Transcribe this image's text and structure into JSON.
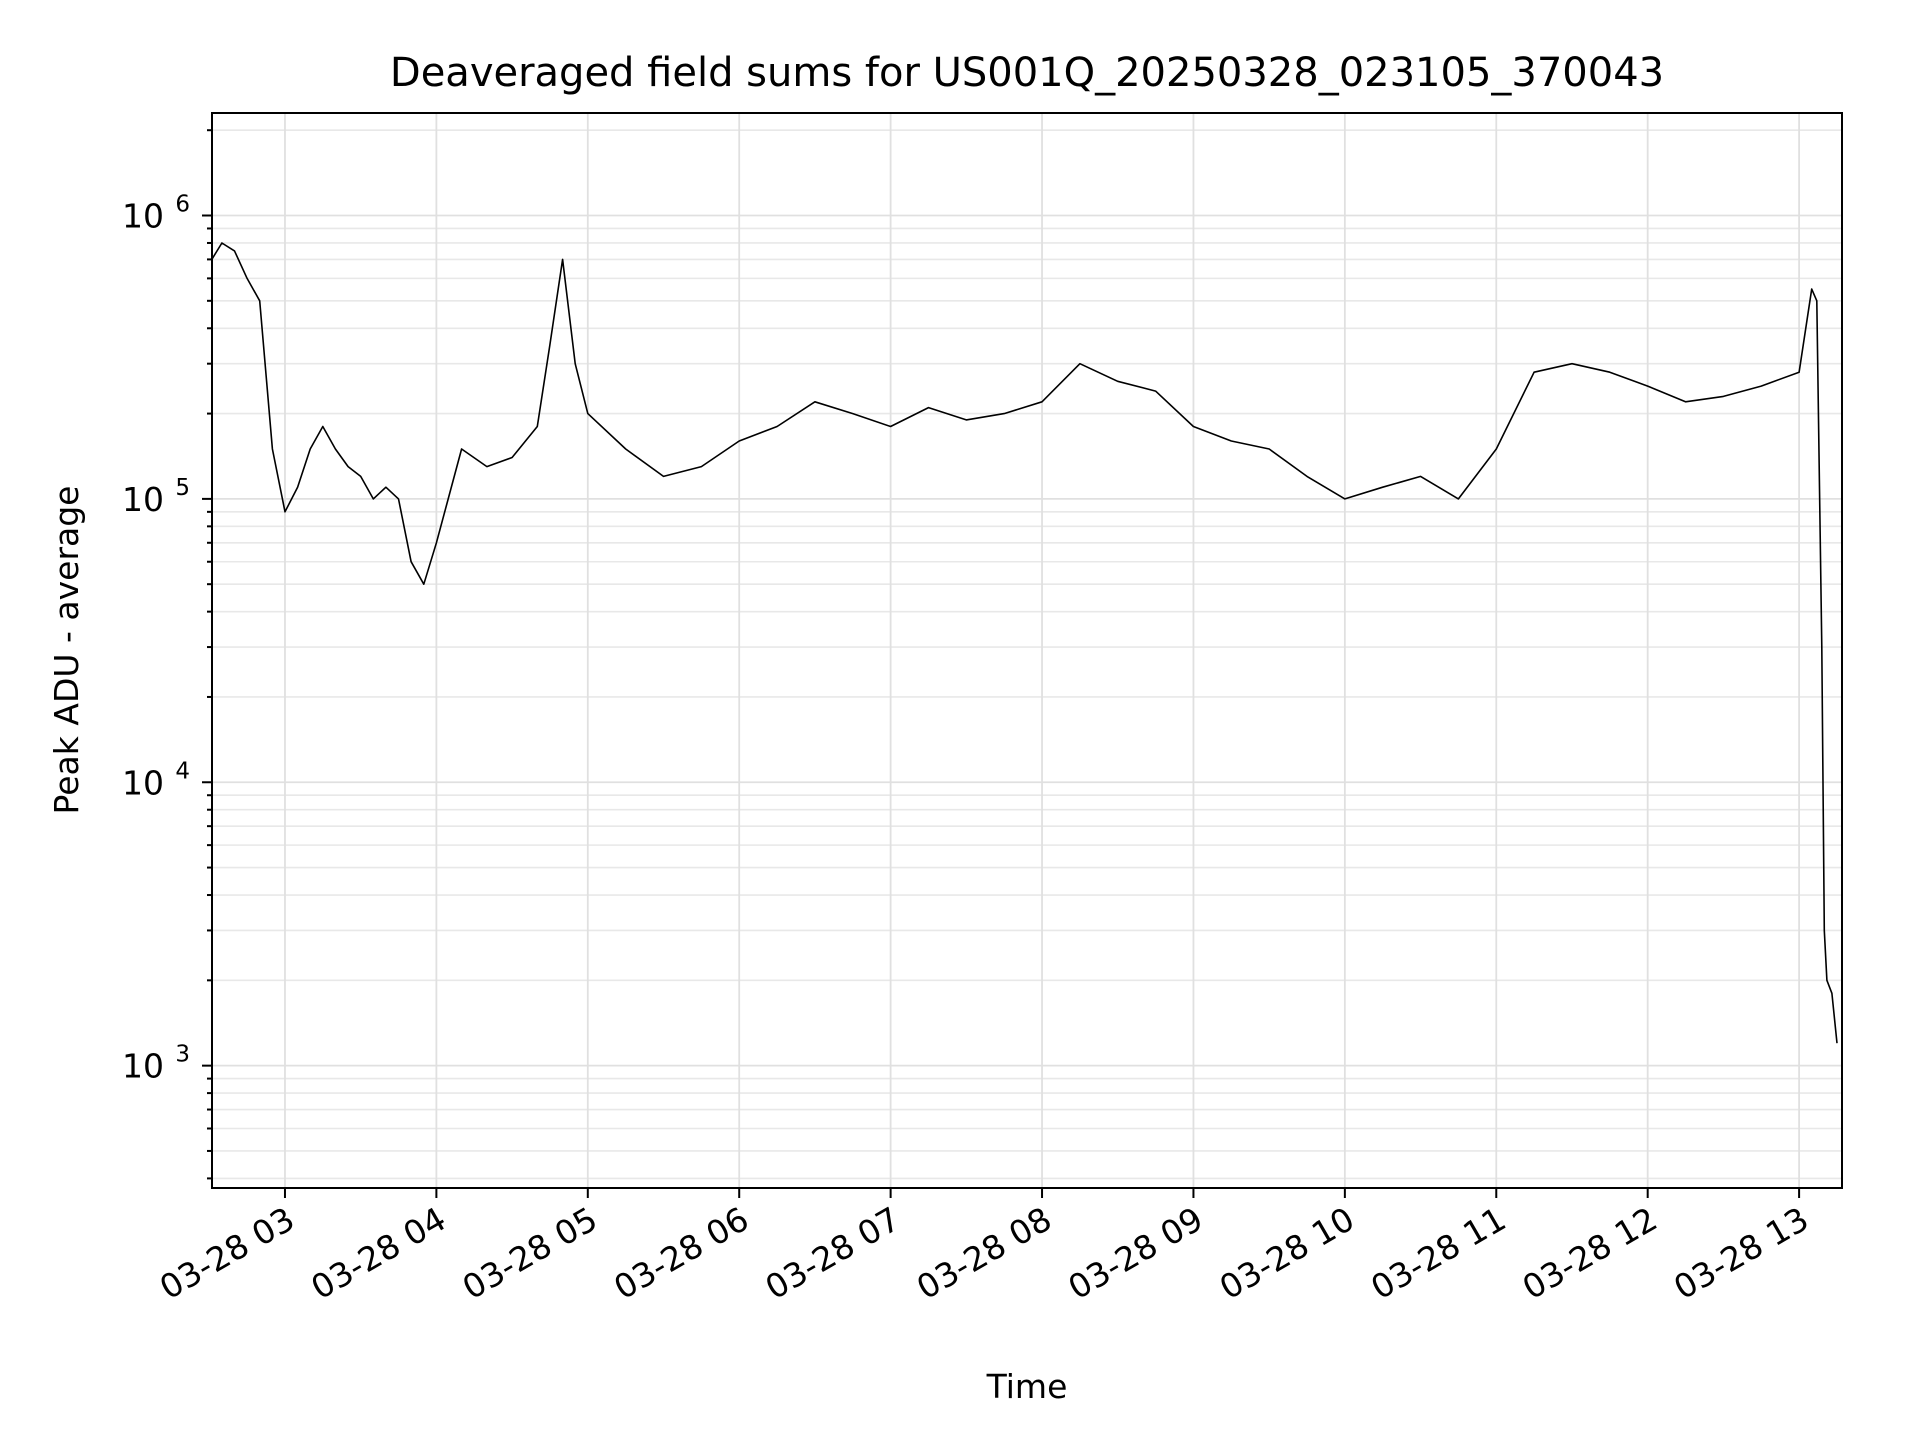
{
  "chart_data": {
    "type": "line",
    "title": "Deaveraged field sums for US001Q_20250328_023105_370043",
    "xlabel": "Time",
    "ylabel": "Peak ADU - average",
    "yscale": "log",
    "ylim": [
      370,
      2300000
    ],
    "xlim": [
      "2025-03-28 02:31:05",
      "2025-03-28 13:17:00"
    ],
    "grid": true,
    "legend": "none",
    "line_color": "#000000",
    "x_ticks": [
      "03-28 03",
      "03-28 04",
      "03-28 05",
      "03-28 06",
      "03-28 07",
      "03-28 08",
      "03-28 09",
      "03-28 10",
      "03-28 11",
      "03-28 12",
      "03-28 13"
    ],
    "y_ticks": [
      {
        "value": 1000,
        "base": "10",
        "exp": "3"
      },
      {
        "value": 10000,
        "base": "10",
        "exp": "4"
      },
      {
        "value": 100000,
        "base": "10",
        "exp": "5"
      },
      {
        "value": 1000000,
        "base": "10",
        "exp": "6"
      }
    ],
    "series": [
      {
        "x": [
          "2025-03-28 02:31",
          "2025-03-28 02:35",
          "2025-03-28 02:40",
          "2025-03-28 02:45",
          "2025-03-28 02:50",
          "2025-03-28 02:55",
          "2025-03-28 03:00",
          "2025-03-28 03:05",
          "2025-03-28 03:10",
          "2025-03-28 03:15",
          "2025-03-28 03:20",
          "2025-03-28 03:25",
          "2025-03-28 03:30",
          "2025-03-28 03:35",
          "2025-03-28 03:40",
          "2025-03-28 03:45",
          "2025-03-28 03:50",
          "2025-03-28 03:55",
          "2025-03-28 04:00",
          "2025-03-28 04:10",
          "2025-03-28 04:20",
          "2025-03-28 04:30",
          "2025-03-28 04:40",
          "2025-03-28 04:45",
          "2025-03-28 04:50",
          "2025-03-28 04:55",
          "2025-03-28 05:00",
          "2025-03-28 05:15",
          "2025-03-28 05:30",
          "2025-03-28 05:45",
          "2025-03-28 06:00",
          "2025-03-28 06:15",
          "2025-03-28 06:30",
          "2025-03-28 06:45",
          "2025-03-28 07:00",
          "2025-03-28 07:15",
          "2025-03-28 07:30",
          "2025-03-28 07:45",
          "2025-03-28 08:00",
          "2025-03-28 08:15",
          "2025-03-28 08:30",
          "2025-03-28 08:45",
          "2025-03-28 09:00",
          "2025-03-28 09:15",
          "2025-03-28 09:30",
          "2025-03-28 09:45",
          "2025-03-28 10:00",
          "2025-03-28 10:15",
          "2025-03-28 10:30",
          "2025-03-28 10:45",
          "2025-03-28 11:00",
          "2025-03-28 11:15",
          "2025-03-28 11:30",
          "2025-03-28 11:45",
          "2025-03-28 12:00",
          "2025-03-28 12:15",
          "2025-03-28 12:30",
          "2025-03-28 12:45",
          "2025-03-28 13:00",
          "2025-03-28 13:05",
          "2025-03-28 13:07",
          "2025-03-28 13:09",
          "2025-03-28 13:10",
          "2025-03-28 13:11",
          "2025-03-28 13:13",
          "2025-03-28 13:15"
        ],
        "y": [
          700000,
          800000,
          750000,
          600000,
          500000,
          150000,
          90000,
          110000,
          150000,
          180000,
          150000,
          130000,
          120000,
          100000,
          110000,
          100000,
          60000,
          50000,
          70000,
          150000,
          130000,
          140000,
          180000,
          350000,
          700000,
          300000,
          200000,
          150000,
          120000,
          130000,
          160000,
          180000,
          220000,
          200000,
          180000,
          210000,
          190000,
          200000,
          220000,
          300000,
          260000,
          240000,
          180000,
          160000,
          150000,
          120000,
          100000,
          110000,
          120000,
          100000,
          150000,
          280000,
          300000,
          280000,
          250000,
          220000,
          230000,
          250000,
          280000,
          550000,
          500000,
          30000,
          3000,
          2000,
          1800,
          1200
        ]
      }
    ]
  }
}
